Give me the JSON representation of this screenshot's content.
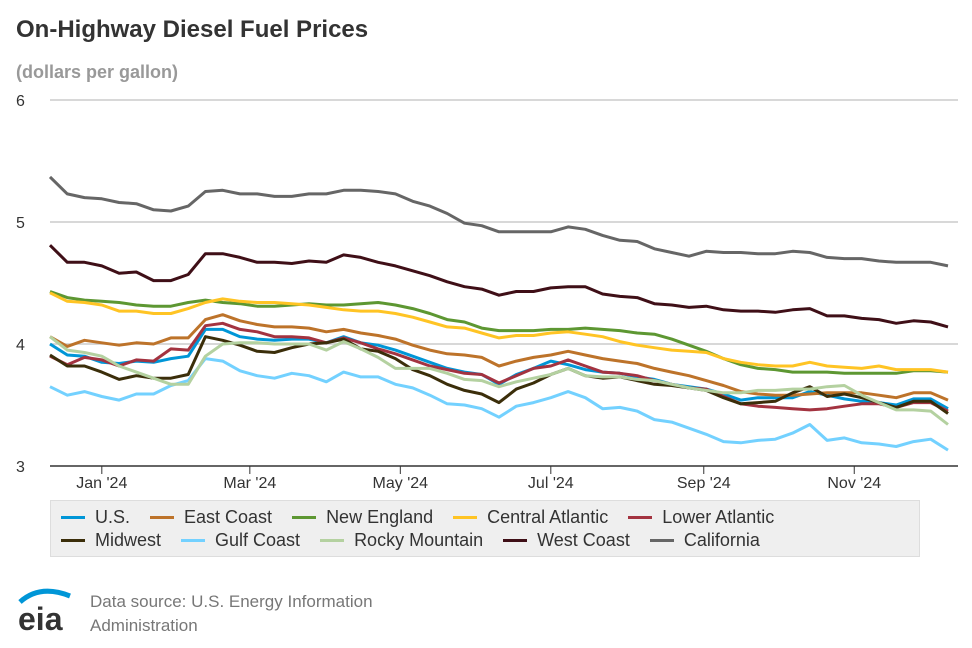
{
  "chart_data": {
    "type": "line",
    "title": "On-Highway Diesel Fuel Prices",
    "subtitle": "(dollars per gallon)",
    "x_start": "2023-12-11",
    "x_interval": "weekly",
    "ylim": [
      3,
      6
    ],
    "yticks": [
      "3",
      "4",
      "5",
      "6"
    ],
    "xticks": [
      "Jan '24",
      "Mar '24",
      "May '24",
      "Jul '24",
      "Sep '24",
      "Nov '24"
    ],
    "xtick_dates": [
      "2024-01-01",
      "2024-03-01",
      "2024-05-01",
      "2024-07-01",
      "2024-09-01",
      "2024-11-01"
    ],
    "grid": "horizontal",
    "legend_placement": "bottom",
    "series": [
      {
        "name": "U.S.",
        "color": "#0096d7",
        "values": [
          4.0,
          3.91,
          3.9,
          3.85,
          3.84,
          3.86,
          3.85,
          3.88,
          3.9,
          4.12,
          4.12,
          4.06,
          4.04,
          4.03,
          4.04,
          4.04,
          4.01,
          4.06,
          4.01,
          3.99,
          3.95,
          3.9,
          3.85,
          3.8,
          3.77,
          3.75,
          3.67,
          3.75,
          3.8,
          3.86,
          3.83,
          3.79,
          3.77,
          3.76,
          3.73,
          3.71,
          3.67,
          3.65,
          3.63,
          3.59,
          3.54,
          3.56,
          3.56,
          3.56,
          3.61,
          3.58,
          3.55,
          3.53,
          3.52,
          3.5,
          3.55,
          3.55,
          3.47
        ]
      },
      {
        "name": "East Coast",
        "color": "#bd732a",
        "values": [
          4.06,
          3.98,
          4.03,
          4.01,
          3.99,
          4.01,
          4.0,
          4.05,
          4.05,
          4.2,
          4.24,
          4.19,
          4.16,
          4.14,
          4.14,
          4.13,
          4.1,
          4.12,
          4.09,
          4.07,
          4.04,
          3.99,
          3.95,
          3.92,
          3.91,
          3.89,
          3.82,
          3.86,
          3.89,
          3.91,
          3.94,
          3.91,
          3.88,
          3.86,
          3.84,
          3.8,
          3.77,
          3.74,
          3.7,
          3.66,
          3.61,
          3.59,
          3.58,
          3.58,
          3.59,
          3.6,
          3.6,
          3.6,
          3.58,
          3.56,
          3.6,
          3.6,
          3.54
        ]
      },
      {
        "name": "New England",
        "color": "#5d9732",
        "values": [
          4.43,
          4.38,
          4.36,
          4.35,
          4.34,
          4.32,
          4.31,
          4.31,
          4.34,
          4.36,
          4.34,
          4.33,
          4.31,
          4.31,
          4.32,
          4.33,
          4.32,
          4.32,
          4.33,
          4.34,
          4.32,
          4.29,
          4.25,
          4.2,
          4.18,
          4.13,
          4.11,
          4.11,
          4.11,
          4.12,
          4.12,
          4.13,
          4.12,
          4.11,
          4.09,
          4.08,
          4.04,
          3.99,
          3.94,
          3.88,
          3.83,
          3.8,
          3.79,
          3.77,
          3.77,
          3.77,
          3.76,
          3.76,
          3.76,
          3.76,
          3.78,
          3.78,
          3.77
        ]
      },
      {
        "name": "Central Atlantic",
        "color": "#ffc424",
        "values": [
          4.42,
          4.35,
          4.34,
          4.32,
          4.27,
          4.27,
          4.25,
          4.25,
          4.29,
          4.34,
          4.37,
          4.35,
          4.34,
          4.34,
          4.33,
          4.32,
          4.3,
          4.28,
          4.27,
          4.27,
          4.25,
          4.22,
          4.18,
          4.14,
          4.13,
          4.09,
          4.05,
          4.07,
          4.07,
          4.09,
          4.1,
          4.08,
          4.06,
          4.02,
          3.99,
          3.97,
          3.95,
          3.94,
          3.93,
          3.88,
          3.85,
          3.83,
          3.82,
          3.82,
          3.85,
          3.82,
          3.81,
          3.8,
          3.82,
          3.79,
          3.79,
          3.79,
          3.77
        ]
      },
      {
        "name": "Lower Atlantic",
        "color": "#a33340",
        "values": [
          3.9,
          3.83,
          3.89,
          3.87,
          3.82,
          3.87,
          3.86,
          3.96,
          3.95,
          4.15,
          4.17,
          4.12,
          4.1,
          4.06,
          4.06,
          4.05,
          4.01,
          4.05,
          4.01,
          3.96,
          3.92,
          3.87,
          3.82,
          3.79,
          3.76,
          3.75,
          3.68,
          3.74,
          3.8,
          3.82,
          3.87,
          3.82,
          3.77,
          3.76,
          3.74,
          3.7,
          3.67,
          3.64,
          3.63,
          3.57,
          3.51,
          3.49,
          3.48,
          3.47,
          3.46,
          3.47,
          3.49,
          3.51,
          3.51,
          3.48,
          3.52,
          3.52,
          3.45
        ]
      },
      {
        "name": "Midwest",
        "color": "#3b2e0a",
        "values": [
          3.91,
          3.82,
          3.82,
          3.77,
          3.71,
          3.74,
          3.72,
          3.72,
          3.75,
          4.06,
          4.03,
          3.99,
          3.94,
          3.93,
          3.97,
          4.0,
          4.01,
          4.04,
          3.96,
          3.94,
          3.88,
          3.79,
          3.74,
          3.67,
          3.62,
          3.59,
          3.52,
          3.63,
          3.68,
          3.75,
          3.8,
          3.74,
          3.72,
          3.73,
          3.7,
          3.67,
          3.66,
          3.64,
          3.62,
          3.56,
          3.51,
          3.52,
          3.53,
          3.6,
          3.65,
          3.57,
          3.59,
          3.56,
          3.52,
          3.48,
          3.53,
          3.53,
          3.43
        ]
      },
      {
        "name": "Gulf Coast",
        "color": "#73d1ff",
        "values": [
          3.65,
          3.58,
          3.61,
          3.57,
          3.54,
          3.59,
          3.59,
          3.66,
          3.7,
          3.88,
          3.86,
          3.78,
          3.74,
          3.72,
          3.76,
          3.74,
          3.69,
          3.77,
          3.73,
          3.73,
          3.67,
          3.64,
          3.58,
          3.51,
          3.5,
          3.47,
          3.4,
          3.49,
          3.52,
          3.56,
          3.61,
          3.56,
          3.47,
          3.48,
          3.45,
          3.38,
          3.36,
          3.31,
          3.26,
          3.2,
          3.19,
          3.21,
          3.22,
          3.27,
          3.34,
          3.21,
          3.23,
          3.19,
          3.18,
          3.16,
          3.2,
          3.22,
          3.13
        ]
      },
      {
        "name": "Rocky Mountain",
        "color": "#b4d1a0",
        "values": [
          4.06,
          3.95,
          3.93,
          3.9,
          3.82,
          3.77,
          3.72,
          3.67,
          3.67,
          3.9,
          4.0,
          4.01,
          4.01,
          4.0,
          4.0,
          4.0,
          3.95,
          4.02,
          3.96,
          3.89,
          3.8,
          3.8,
          3.8,
          3.76,
          3.71,
          3.7,
          3.65,
          3.69,
          3.72,
          3.75,
          3.8,
          3.74,
          3.73,
          3.73,
          3.71,
          3.7,
          3.67,
          3.64,
          3.62,
          3.6,
          3.6,
          3.62,
          3.62,
          3.63,
          3.63,
          3.65,
          3.66,
          3.58,
          3.52,
          3.46,
          3.46,
          3.45,
          3.34
        ]
      },
      {
        "name": "West Coast",
        "color": "#3f0f17",
        "values": [
          4.81,
          4.67,
          4.67,
          4.64,
          4.58,
          4.59,
          4.52,
          4.52,
          4.57,
          4.74,
          4.74,
          4.71,
          4.67,
          4.67,
          4.66,
          4.68,
          4.67,
          4.73,
          4.71,
          4.67,
          4.64,
          4.6,
          4.56,
          4.51,
          4.47,
          4.45,
          4.4,
          4.43,
          4.43,
          4.46,
          4.47,
          4.47,
          4.41,
          4.39,
          4.38,
          4.33,
          4.32,
          4.3,
          4.31,
          4.28,
          4.27,
          4.27,
          4.26,
          4.28,
          4.29,
          4.23,
          4.23,
          4.21,
          4.2,
          4.17,
          4.19,
          4.18,
          4.14
        ]
      },
      {
        "name": "California",
        "color": "#666666",
        "values": [
          5.37,
          5.23,
          5.2,
          5.19,
          5.16,
          5.15,
          5.1,
          5.09,
          5.13,
          5.25,
          5.26,
          5.23,
          5.23,
          5.21,
          5.21,
          5.23,
          5.23,
          5.26,
          5.26,
          5.25,
          5.23,
          5.17,
          5.13,
          5.07,
          4.99,
          4.97,
          4.92,
          4.92,
          4.92,
          4.92,
          4.96,
          4.94,
          4.89,
          4.85,
          4.84,
          4.78,
          4.75,
          4.72,
          4.76,
          4.75,
          4.75,
          4.74,
          4.74,
          4.76,
          4.75,
          4.71,
          4.7,
          4.7,
          4.68,
          4.67,
          4.67,
          4.67,
          4.64
        ]
      }
    ]
  },
  "footer": {
    "source_text": "Data source: U.S. Energy Information Administration",
    "logo_text": "eia"
  }
}
